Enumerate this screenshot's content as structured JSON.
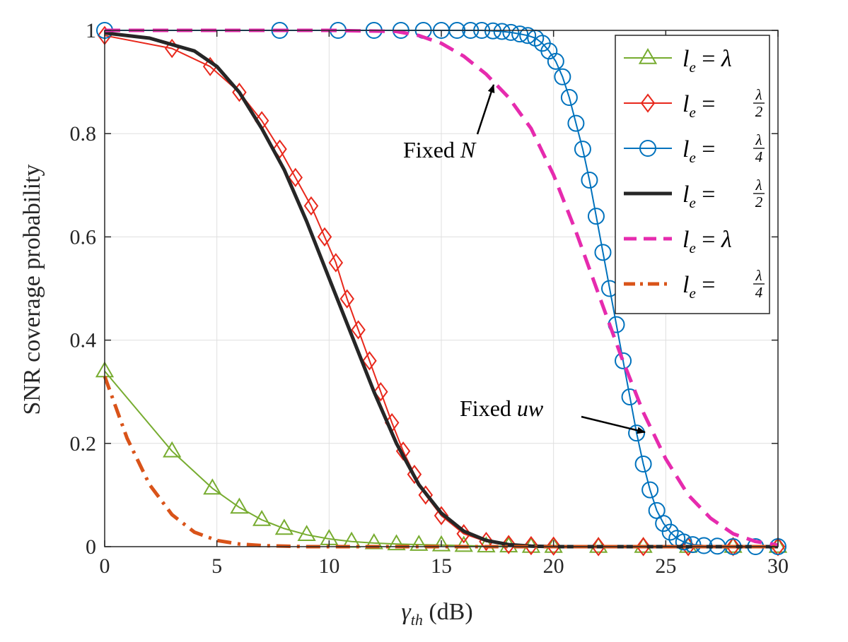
{
  "chart_data": {
    "type": "line",
    "xlabel": "γth (dB)",
    "xlabel_main": "γ",
    "xlabel_sub": "th",
    "xlabel_unit": " (dB)",
    "ylabel": "SNR coverage probability",
    "xlim": [
      0,
      30
    ],
    "ylim": [
      0,
      1
    ],
    "xticks": [
      0,
      5,
      10,
      15,
      20,
      25,
      30
    ],
    "yticks": [
      0,
      0.2,
      0.4,
      0.6,
      0.8,
      1
    ],
    "ytick_labels": [
      "0",
      "0.2",
      "0.4",
      "0.6",
      "0.8",
      "1"
    ],
    "grid": true,
    "legend_position": "top-right",
    "series": [
      {
        "name": "le = λ",
        "legend_var": "l",
        "legend_sub": "e",
        "legend_rhs": "λ",
        "color": "#77AC30",
        "linestyle": "solid",
        "linewidth": 2,
        "marker": "triangle",
        "group": "Fixed N",
        "x": [
          0,
          3,
          4.8,
          6,
          7,
          8,
          9,
          10,
          11,
          12,
          13,
          14,
          15,
          16,
          17,
          18,
          19,
          20,
          22,
          24,
          26,
          28,
          30
        ],
        "y": [
          0.34,
          0.185,
          0.113,
          0.076,
          0.052,
          0.035,
          0.023,
          0.015,
          0.01,
          0.007,
          0.005,
          0.004,
          0.003,
          0.002,
          0.001,
          0.001,
          0,
          0,
          0,
          0,
          0,
          0,
          0
        ]
      },
      {
        "name": "le = λ/2",
        "legend_var": "l",
        "legend_sub": "e",
        "legend_num": "λ",
        "legend_den": "2",
        "color": "#E8281C",
        "linestyle": "solid",
        "linewidth": 2,
        "marker": "diamond",
        "group": "Fixed N",
        "x": [
          0,
          3,
          4.7,
          6,
          7,
          7.8,
          8.5,
          9.2,
          9.8,
          10.3,
          10.8,
          11.3,
          11.8,
          12.3,
          12.8,
          13.3,
          13.8,
          14.3,
          15,
          16,
          17,
          18,
          19,
          20,
          22,
          24,
          26,
          28,
          30
        ],
        "y": [
          0.99,
          0.965,
          0.93,
          0.88,
          0.825,
          0.77,
          0.715,
          0.66,
          0.6,
          0.55,
          0.48,
          0.42,
          0.36,
          0.3,
          0.24,
          0.185,
          0.14,
          0.1,
          0.06,
          0.025,
          0.01,
          0.004,
          0.002,
          0.001,
          0,
          0,
          0,
          0,
          0
        ]
      },
      {
        "name": "le = λ/4",
        "legend_var": "l",
        "legend_sub": "e",
        "legend_num": "λ",
        "legend_den": "4",
        "color": "#0072BD",
        "linestyle": "solid",
        "linewidth": 2,
        "marker": "circle",
        "group": "Fixed N",
        "x": [
          0,
          7.8,
          10.4,
          12,
          13.2,
          14.2,
          15,
          15.7,
          16.3,
          16.8,
          17.3,
          17.7,
          18.1,
          18.5,
          18.85,
          19.2,
          19.5,
          19.8,
          20.1,
          20.4,
          20.7,
          21,
          21.3,
          21.6,
          21.9,
          22.2,
          22.5,
          22.8,
          23.1,
          23.4,
          23.7,
          24,
          24.3,
          24.6,
          24.9,
          25.2,
          25.5,
          25.8,
          26.2,
          26.7,
          27.3,
          28,
          29,
          30
        ],
        "y": [
          1,
          1,
          1,
          1,
          1,
          1,
          1,
          1,
          1,
          1,
          0.999,
          0.998,
          0.996,
          0.993,
          0.99,
          0.985,
          0.975,
          0.96,
          0.94,
          0.91,
          0.87,
          0.82,
          0.77,
          0.71,
          0.64,
          0.57,
          0.5,
          0.43,
          0.36,
          0.29,
          0.22,
          0.16,
          0.11,
          0.07,
          0.045,
          0.028,
          0.016,
          0.009,
          0.004,
          0.002,
          0.001,
          0,
          0,
          0
        ]
      },
      {
        "name": "le = λ/2",
        "legend_var": "l",
        "legend_sub": "e",
        "legend_num": "λ",
        "legend_den": "2",
        "color": "#262626",
        "linestyle": "solid",
        "linewidth": 5,
        "marker": "none",
        "group": "Fixed uw",
        "x": [
          0,
          2,
          4,
          5,
          6,
          7,
          8,
          9,
          10,
          11,
          12,
          13,
          14,
          15,
          16,
          17,
          18,
          19,
          20,
          22,
          25,
          30
        ],
        "y": [
          0.995,
          0.985,
          0.96,
          0.93,
          0.88,
          0.81,
          0.73,
          0.63,
          0.52,
          0.41,
          0.3,
          0.2,
          0.12,
          0.065,
          0.03,
          0.012,
          0.004,
          0.001,
          0,
          0,
          0,
          0
        ]
      },
      {
        "name": "le = λ",
        "legend_var": "l",
        "legend_sub": "e",
        "legend_rhs": "λ",
        "color": "#E62BAE",
        "linestyle": "dashed",
        "linewidth": 5,
        "marker": "none",
        "group": "Fixed uw",
        "x": [
          0,
          5,
          10,
          13,
          14,
          15,
          16,
          17,
          18,
          19,
          20,
          21,
          22,
          23,
          24,
          25,
          26,
          27,
          28,
          29,
          30
        ],
        "y": [
          1,
          1,
          1,
          0.998,
          0.99,
          0.975,
          0.95,
          0.915,
          0.87,
          0.81,
          0.72,
          0.61,
          0.49,
          0.37,
          0.26,
          0.17,
          0.1,
          0.055,
          0.025,
          0.01,
          0.003
        ]
      },
      {
        "name": "le = λ/4",
        "legend_var": "l",
        "legend_sub": "e",
        "legend_num": "λ",
        "legend_den": "4",
        "color": "#D95319",
        "linestyle": "dashdot",
        "linewidth": 5,
        "marker": "none",
        "group": "Fixed uw",
        "x": [
          0,
          1,
          2,
          3,
          4,
          5,
          6,
          7,
          8,
          9,
          10,
          15,
          20,
          25,
          30
        ],
        "y": [
          0.33,
          0.21,
          0.12,
          0.062,
          0.028,
          0.012,
          0.005,
          0.002,
          0.001,
          0,
          0,
          0,
          0,
          0,
          0
        ]
      }
    ],
    "annotations": [
      {
        "text_prefix": "Fixed ",
        "text_var": "N"
      },
      {
        "text_prefix": "Fixed ",
        "text_var": "uw"
      }
    ]
  }
}
